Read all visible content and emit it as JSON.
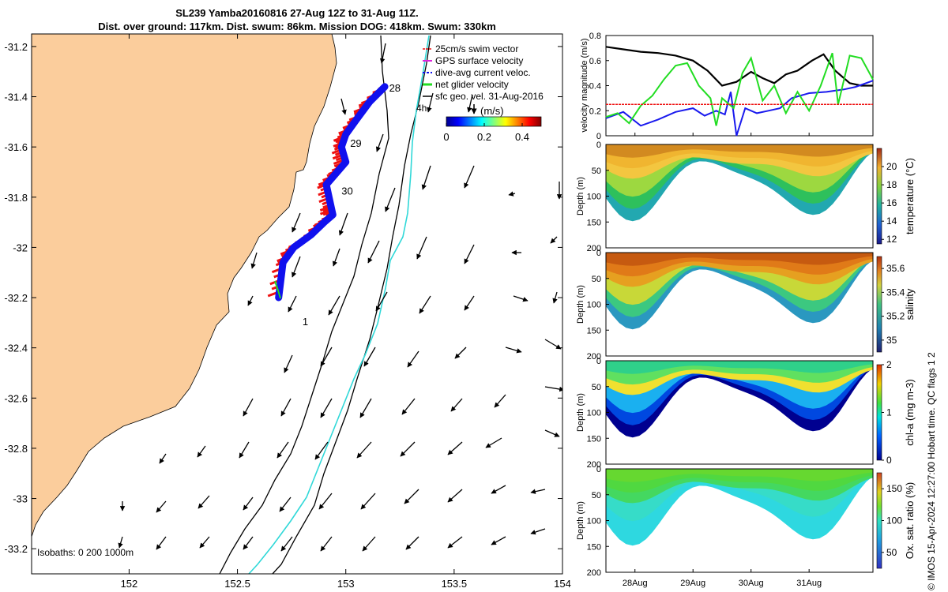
{
  "title_line1": "SL239 Yamba20160816 27-Aug 12Z to 31-Aug 11Z.",
  "title_line2": "Dist. over ground: 117km. Dist. swum: 86km. Mission DOG: 418km. Swum: 330km",
  "credit": "© IMOS 15-Apr-2024 12:27:00 Hobart time. QC flags 1  2",
  "colors": {
    "land": "#fbcd9c",
    "track": "#1010ee",
    "swim": "#ee1010",
    "cyan": "#30d8d8",
    "green": "#22dd22"
  },
  "chart_data": [
    {
      "type": "map",
      "xlim": [
        151.55,
        154
      ],
      "ylim": [
        -33.3,
        -31.15
      ],
      "x_ticks": [
        152,
        152.5,
        153,
        153.5,
        154
      ],
      "x_tick_labels": [
        "152",
        "152.5",
        "153",
        "153.5",
        "154"
      ],
      "y_ticks": [
        -31.2,
        -31.4,
        -31.6,
        -31.8,
        -32,
        -32.2,
        -32.4,
        -32.6,
        -32.8,
        -33,
        -33.2
      ],
      "y_tick_labels": [
        "-31.2",
        "-31.4",
        "-31.6",
        "-31.8",
        "-32",
        "-32.2",
        "-32.4",
        "-32.6",
        "-32.8",
        "-33",
        "-33.2"
      ],
      "legend": [
        "25cm/s swim vector",
        "GPS surface velocity",
        "dive-avg current veloc.",
        "net glider velocity",
        "sfc geo. vel. 31-Aug-2016"
      ],
      "colorbar": {
        "label": "(m/s)",
        "ticks": [
          0,
          0.2,
          0.4
        ],
        "tick_labels": [
          "0",
          "0.2",
          "0.4"
        ],
        "range": [
          0,
          0.5
        ]
      },
      "isobaths_label": "Isobaths: 0   200  1000m",
      "day_labels": [
        {
          "text": "28",
          "lon": 153.2,
          "lat": -31.38
        },
        {
          "text": "29",
          "lon": 153.02,
          "lat": -31.6
        },
        {
          "text": "30",
          "lon": 152.98,
          "lat": -31.79
        },
        {
          "text": "1",
          "lon": 152.8,
          "lat": -32.31
        }
      ],
      "label_4h": "4h",
      "track": [
        [
          153.18,
          -31.36
        ],
        [
          153.11,
          -31.42
        ],
        [
          153.05,
          -31.49
        ],
        [
          153.0,
          -31.55
        ],
        [
          152.98,
          -31.6
        ],
        [
          153.0,
          -31.66
        ],
        [
          152.96,
          -31.7
        ],
        [
          152.91,
          -31.75
        ],
        [
          152.93,
          -31.83
        ],
        [
          152.94,
          -31.87
        ],
        [
          152.9,
          -31.9
        ],
        [
          152.84,
          -31.95
        ],
        [
          152.76,
          -32.0
        ],
        [
          152.71,
          -32.06
        ],
        [
          152.69,
          -32.2
        ]
      ]
    },
    {
      "type": "line",
      "ylabel": "velocity magnitude (m/s)",
      "xlim": [
        0,
        4.6
      ],
      "ylim": [
        0,
        0.8
      ],
      "y_ticks": [
        0,
        0.2,
        0.4,
        0.6,
        0.8
      ],
      "y_tick_labels": [
        "0",
        "0.2",
        "0.4",
        "0.6",
        "0.8"
      ],
      "x_ticks": [
        0.5,
        1.5,
        2.5,
        3.5
      ],
      "x_tick_labels": [
        "28Aug",
        "29Aug",
        "30Aug",
        "31Aug"
      ],
      "series": [
        {
          "color": "#000000",
          "x": [
            0,
            0.3,
            0.6,
            0.9,
            1.2,
            1.5,
            1.75,
            2.0,
            2.25,
            2.5,
            2.7,
            2.9,
            3.1,
            3.3,
            3.55,
            3.75,
            3.95,
            4.2,
            4.4,
            4.6
          ],
          "values": [
            0.71,
            0.69,
            0.67,
            0.66,
            0.64,
            0.6,
            0.52,
            0.4,
            0.43,
            0.51,
            0.46,
            0.42,
            0.49,
            0.52,
            0.6,
            0.65,
            0.52,
            0.42,
            0.4,
            0.4
          ]
        },
        {
          "color": "#1a1aee",
          "x": [
            0,
            0.3,
            0.6,
            0.9,
            1.2,
            1.5,
            1.7,
            1.9,
            2.05,
            2.15,
            2.25,
            2.4,
            2.6,
            2.8,
            3.0,
            3.2,
            3.5,
            3.8,
            4.1,
            4.3,
            4.6
          ],
          "values": [
            0.14,
            0.19,
            0.08,
            0.13,
            0.19,
            0.22,
            0.16,
            0.2,
            0.17,
            0.35,
            0.0,
            0.22,
            0.18,
            0.2,
            0.22,
            0.3,
            0.34,
            0.35,
            0.37,
            0.39,
            0.44
          ]
        },
        {
          "color": "#22dd22",
          "x": [
            0,
            0.2,
            0.4,
            0.6,
            0.8,
            1.0,
            1.2,
            1.4,
            1.6,
            1.8,
            1.9,
            2.0,
            2.2,
            2.35,
            2.5,
            2.7,
            2.9,
            3.1,
            3.3,
            3.5,
            3.7,
            3.9,
            4.0,
            4.2,
            4.4,
            4.6
          ],
          "values": [
            0.15,
            0.18,
            0.1,
            0.24,
            0.32,
            0.45,
            0.56,
            0.58,
            0.4,
            0.3,
            0.08,
            0.3,
            0.22,
            0.5,
            0.62,
            0.28,
            0.4,
            0.18,
            0.35,
            0.2,
            0.4,
            0.66,
            0.25,
            0.64,
            0.62,
            0.45
          ]
        },
        {
          "color": "#ee1010",
          "x": [
            0,
            4.6
          ],
          "values": [
            0.25,
            0.25
          ]
        }
      ]
    },
    {
      "type": "heatmap",
      "ylabel": "Depth (m)",
      "colorbar_label": "temperature (°C)",
      "ylim": [
        0,
        200
      ],
      "y_ticks": [
        0,
        50,
        100,
        150,
        200
      ],
      "cb_ticks": [
        12,
        14,
        16,
        18,
        20
      ],
      "cb_range": [
        11.5,
        22
      ]
    },
    {
      "type": "heatmap",
      "ylabel": "Depth (m)",
      "colorbar_label": "salinity",
      "ylim": [
        0,
        200
      ],
      "y_ticks": [
        0,
        50,
        100,
        150,
        200
      ],
      "cb_ticks": [
        35,
        35.2,
        35.4,
        35.6
      ],
      "cb_tick_labels": [
        "35",
        "35.2",
        "35.4",
        "35.6"
      ],
      "cb_range": [
        34.9,
        35.7
      ]
    },
    {
      "type": "heatmap",
      "ylabel": "Depth (m)",
      "colorbar_label": "chl-a (mg m-3)",
      "ylim": [
        0,
        200
      ],
      "y_ticks": [
        0,
        50,
        100,
        150,
        200
      ],
      "cb_ticks": [
        0,
        1,
        2
      ],
      "cb_range": [
        0,
        2
      ]
    },
    {
      "type": "heatmap",
      "ylabel": "Depth (m)",
      "colorbar_label": "Ox. sat. ratio (%)",
      "ylim": [
        0,
        200
      ],
      "y_ticks": [
        0,
        50,
        100,
        150,
        200
      ],
      "cb_ticks": [
        50,
        100,
        150
      ],
      "cb_range": [
        25,
        175
      ],
      "x_ticks": [
        0.5,
        1.5,
        2.5,
        3.5
      ],
      "x_tick_labels": [
        "28Aug",
        "29Aug",
        "30Aug",
        "31Aug"
      ],
      "xlim": [
        0,
        4.6
      ]
    }
  ]
}
